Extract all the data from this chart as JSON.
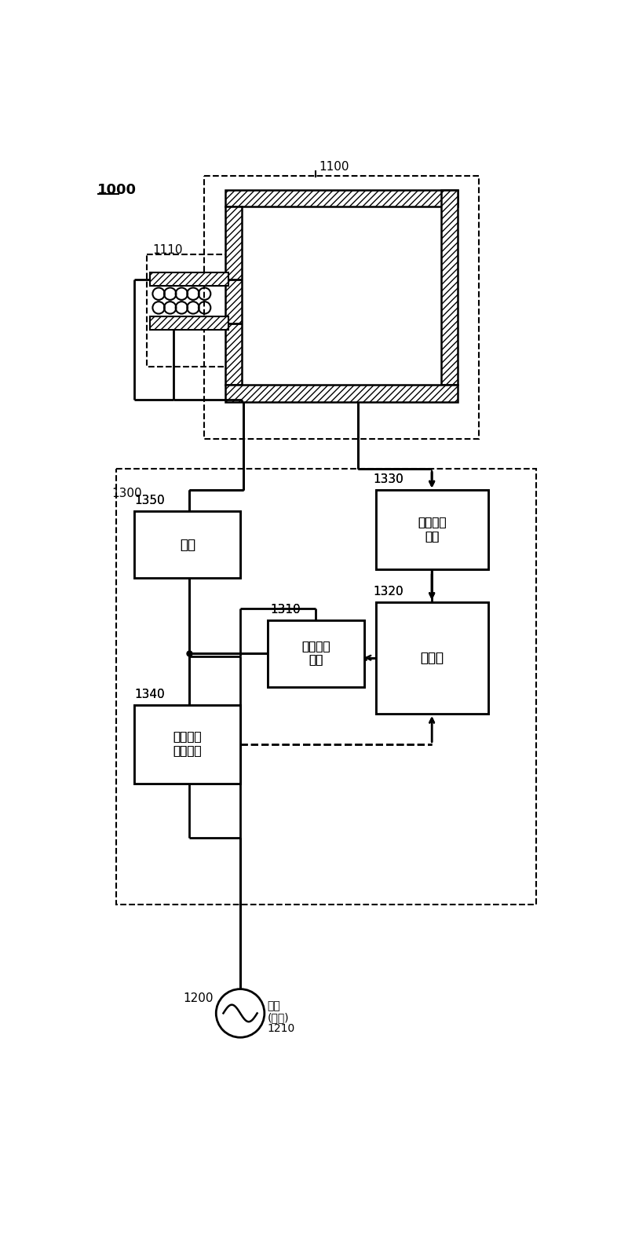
{
  "bg_color": "#ffffff",
  "label_1000": "1000",
  "label_1100": "1100",
  "label_1110": "1110",
  "label_1200": "1200",
  "label_1210": "1210",
  "label_1300": "1300",
  "label_1310": "1310",
  "label_1320": "1320",
  "label_1330": "1330",
  "label_1340": "1340",
  "label_1350": "1350",
  "text_1310": "阻抗匹配\n单元",
  "text_1320": "控制器",
  "text_1330": "阻抗测量\n单元",
  "text_1340": "反射功率\n测量单元",
  "text_1350": "电容",
  "text_rf1": "射频",
  "text_rf2": "(高频)",
  "text_1210": "1210"
}
